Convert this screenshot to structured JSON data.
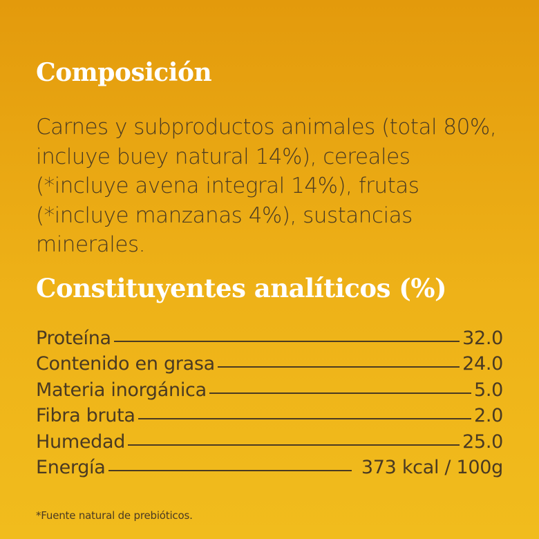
{
  "composition": {
    "title": "Composición",
    "text": "Carnes y subproductos animales (total 80%, incluye buey natural 14%), cereales (*incluye avena integral 14%), frutas (*incluye manzanas 4%), sustancias minerales."
  },
  "analytical": {
    "title": "Constituyentes analíticos (%)",
    "rows": [
      {
        "label": "Proteína",
        "value": "32.0"
      },
      {
        "label": "Contenido en grasa",
        "value": "24.0"
      },
      {
        "label": "Materia inorgánica",
        "value": "5.0"
      },
      {
        "label": "Fibra bruta",
        "value": "2.0"
      },
      {
        "label": "Humedad",
        "value": "25.0"
      },
      {
        "label": "Energía",
        "value": "373 kcal / 100g"
      }
    ]
  },
  "footnote": "*Fuente natural de prebióticos."
}
